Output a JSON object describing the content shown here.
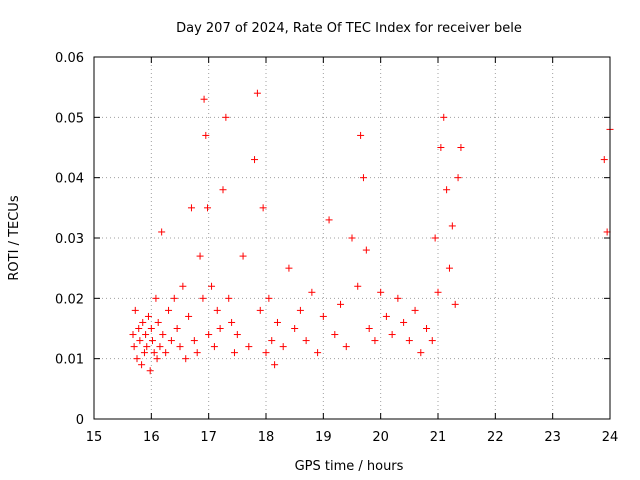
{
  "chart_data": {
    "type": "scatter",
    "title": "Day 207 of 2024, Rate Of TEC Index for receiver bele",
    "xlabel": "GPS time / hours",
    "ylabel": "ROTI / TECUs",
    "xlim": [
      15,
      24
    ],
    "ylim": [
      0,
      0.06
    ],
    "xticks": [
      15,
      16,
      17,
      18,
      19,
      20,
      21,
      22,
      23,
      24
    ],
    "xtick_labels": [
      "15",
      "16",
      "17",
      "18",
      "19",
      "20",
      "21",
      "22",
      "23",
      "24"
    ],
    "yticks": [
      0,
      0.01,
      0.02,
      0.03,
      0.04,
      0.05,
      0.06
    ],
    "ytick_labels": [
      "0",
      "0.01",
      "0.02",
      "0.03",
      "0.04",
      "0.05",
      "0.06"
    ],
    "grid": true,
    "marker": "+",
    "color": "#ff0000",
    "series": [
      {
        "x": [
          15.68,
          15.7,
          15.72,
          15.75,
          15.78,
          15.8,
          15.83,
          15.85,
          15.88,
          15.9,
          15.92,
          15.95,
          15.98,
          16.0,
          16.02,
          16.05,
          16.08,
          16.1,
          16.12,
          16.15,
          16.18,
          16.2,
          16.25,
          16.3,
          16.35,
          16.4,
          16.45,
          16.5,
          16.55,
          16.6,
          16.65,
          16.7,
          16.75,
          16.8,
          16.85,
          16.9,
          16.92,
          16.95,
          16.98,
          17.0,
          17.05,
          17.1,
          17.15,
          17.2,
          17.25,
          17.3,
          17.35,
          17.4,
          17.45,
          17.5,
          17.6,
          17.7,
          17.8,
          17.85,
          17.9,
          17.95,
          18.0,
          18.05,
          18.1,
          18.15,
          18.2,
          18.3,
          18.4,
          18.5,
          18.6,
          18.7,
          18.8,
          18.9,
          19.0,
          19.1,
          19.2,
          19.3,
          19.4,
          19.5,
          19.6,
          19.65,
          19.7,
          19.75,
          19.8,
          19.9,
          20.0,
          20.1,
          20.2,
          20.3,
          20.4,
          20.5,
          20.6,
          20.7,
          20.8,
          20.9,
          20.95,
          21.0,
          21.05,
          21.1,
          21.15,
          21.2,
          21.25,
          21.3,
          21.35,
          21.4,
          23.9,
          23.95,
          24.0
        ],
        "y": [
          0.014,
          0.012,
          0.018,
          0.01,
          0.015,
          0.013,
          0.009,
          0.016,
          0.011,
          0.014,
          0.012,
          0.017,
          0.008,
          0.015,
          0.013,
          0.011,
          0.02,
          0.01,
          0.016,
          0.012,
          0.031,
          0.014,
          0.011,
          0.018,
          0.013,
          0.02,
          0.015,
          0.012,
          0.022,
          0.01,
          0.017,
          0.035,
          0.013,
          0.011,
          0.027,
          0.02,
          0.053,
          0.047,
          0.035,
          0.014,
          0.022,
          0.012,
          0.018,
          0.015,
          0.038,
          0.05,
          0.02,
          0.016,
          0.011,
          0.014,
          0.027,
          0.012,
          0.043,
          0.054,
          0.018,
          0.035,
          0.011,
          0.02,
          0.013,
          0.009,
          0.016,
          0.012,
          0.025,
          0.015,
          0.018,
          0.013,
          0.021,
          0.011,
          0.017,
          0.033,
          0.014,
          0.019,
          0.012,
          0.03,
          0.022,
          0.047,
          0.04,
          0.028,
          0.015,
          0.013,
          0.021,
          0.017,
          0.014,
          0.02,
          0.016,
          0.013,
          0.018,
          0.011,
          0.015,
          0.013,
          0.03,
          0.021,
          0.045,
          0.05,
          0.038,
          0.025,
          0.032,
          0.019,
          0.04,
          0.045,
          0.043,
          0.031,
          0.048
        ]
      }
    ]
  }
}
